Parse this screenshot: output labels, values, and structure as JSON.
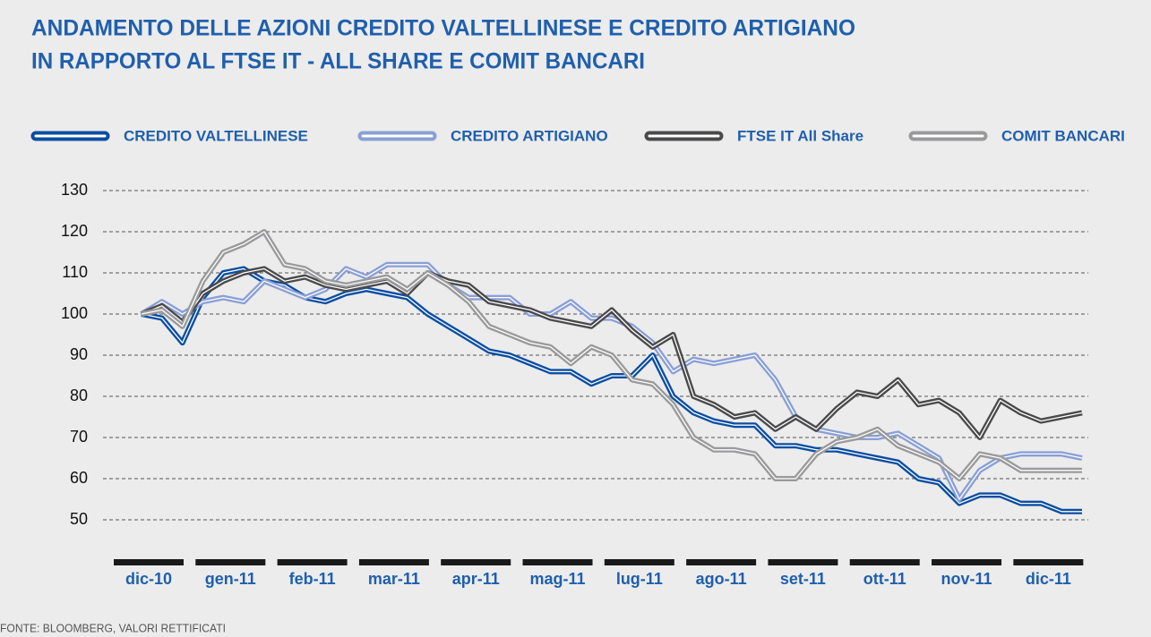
{
  "chart_data": {
    "type": "line",
    "title": [
      "ANDAMENTO DELLE AZIONI CREDITO VALTELLINESE E CREDITO ARTIGIANO",
      "IN RAPPORTO AL FTSE IT - ALL SHARE E COMIT BANCARI"
    ],
    "source": "FONTE: BLOOMBERG, VALORI RETTIFICATI",
    "categories": [
      "dic-10",
      null,
      null,
      null,
      "gen-11",
      null,
      null,
      null,
      "feb-11",
      null,
      null,
      null,
      "mar-11",
      null,
      null,
      null,
      "apr-11",
      null,
      null,
      null,
      "mag-11",
      null,
      null,
      null,
      "lug-11",
      null,
      null,
      null,
      "ago-11",
      null,
      null,
      null,
      "set-11",
      null,
      null,
      null,
      "ott-11",
      null,
      null,
      null,
      "nov-11",
      null,
      null,
      null,
      "dic-11",
      null,
      null
    ],
    "ylim": [
      45,
      130
    ],
    "yticks": [
      50,
      60,
      70,
      80,
      90,
      100,
      110,
      120,
      130
    ],
    "grid": true,
    "series": [
      {
        "name": "CREDITO VALTELLINESE",
        "color": "#0b4ea2",
        "values": [
          100,
          99,
          93,
          104,
          110,
          111,
          108,
          107,
          104,
          103,
          105,
          106,
          105,
          104,
          100,
          97,
          94,
          91,
          90,
          88,
          86,
          86,
          83,
          85,
          85,
          90,
          80,
          76,
          74,
          73,
          73,
          68,
          68,
          67,
          67,
          66,
          65,
          64,
          60,
          59,
          54,
          56,
          56,
          54,
          54,
          52,
          52
        ]
      },
      {
        "name": "CREDITO ARTIGIANO",
        "color": "#8a9fd6",
        "values": [
          100,
          103,
          100,
          103,
          104,
          103,
          108,
          106,
          104,
          106,
          111,
          109,
          112,
          112,
          112,
          107,
          104,
          104,
          104,
          100,
          100,
          103,
          99,
          99,
          97,
          93,
          86,
          89,
          88,
          89,
          90,
          84,
          75,
          72,
          71,
          70,
          70,
          71,
          68,
          65,
          55,
          62,
          65,
          66,
          66,
          66,
          65
        ]
      },
      {
        "name": "FTSE IT All Share",
        "color": "#4a4a4c",
        "values": [
          100,
          102,
          98,
          105,
          108,
          110,
          111,
          108,
          109,
          107,
          106,
          107,
          108,
          105,
          110,
          108,
          107,
          103,
          102,
          101,
          99,
          98,
          97,
          101,
          96,
          92,
          95,
          80,
          78,
          75,
          76,
          72,
          75,
          72,
          77,
          81,
          80,
          84,
          78,
          79,
          76,
          70,
          79,
          76,
          74,
          75,
          76
        ]
      },
      {
        "name": "COMIT BANCARI",
        "color": "#9a9a9c",
        "values": [
          100,
          101,
          97,
          108,
          115,
          117,
          120,
          112,
          111,
          108,
          107,
          108,
          109,
          106,
          110,
          107,
          103,
          97,
          95,
          93,
          92,
          88,
          92,
          90,
          84,
          83,
          78,
          70,
          67,
          67,
          66,
          60,
          60,
          66,
          69,
          70,
          72,
          68,
          66,
          64,
          60,
          66,
          65,
          62,
          62,
          62,
          62
        ]
      }
    ]
  }
}
